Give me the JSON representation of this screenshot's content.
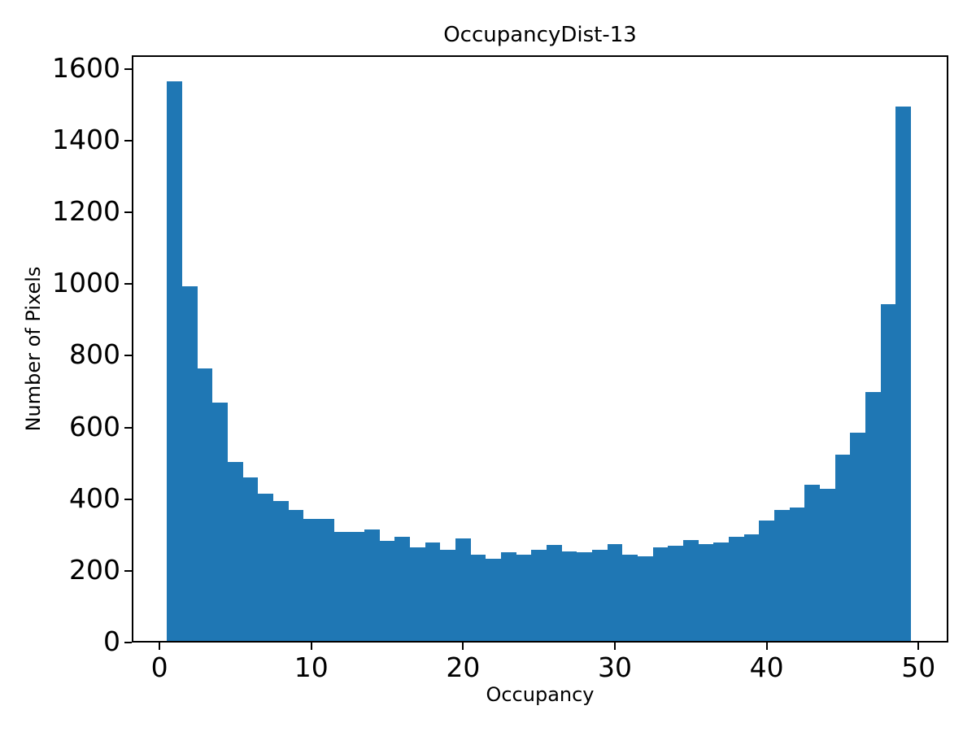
{
  "figure": {
    "background": "#ffffff",
    "bar_color": "#1f77b4",
    "spine_color": "#000000",
    "text_color": "#000000"
  },
  "chart_data": {
    "type": "bar",
    "subtype": "histogram",
    "title": "OccupancyDist-13",
    "xlabel": "Occupancy",
    "ylabel": "Number of Pixels",
    "bin_start": 0.5,
    "bin_width": 1,
    "bin_centers": [
      1,
      2,
      3,
      4,
      5,
      6,
      7,
      8,
      9,
      10,
      11,
      12,
      13,
      14,
      15,
      16,
      17,
      18,
      19,
      20,
      21,
      22,
      23,
      24,
      25,
      26,
      27,
      28,
      29,
      30,
      31,
      32,
      33,
      34,
      35,
      36,
      37,
      38,
      39,
      40,
      41,
      42,
      43,
      44,
      45,
      46,
      47,
      48,
      49
    ],
    "values": [
      1560,
      990,
      760,
      665,
      500,
      455,
      410,
      390,
      365,
      340,
      340,
      305,
      305,
      310,
      280,
      290,
      260,
      275,
      255,
      285,
      240,
      230,
      248,
      240,
      255,
      267,
      250,
      248,
      254,
      270,
      240,
      236,
      261,
      266,
      281,
      271,
      275,
      291,
      297,
      335,
      365,
      371,
      436,
      425,
      520,
      580,
      695,
      940,
      1490
    ],
    "xlim": [
      -1.83,
      51.97
    ],
    "ylim": [
      0,
      1638
    ],
    "xticks": [
      0,
      10,
      20,
      30,
      40,
      50
    ],
    "yticks": [
      0,
      200,
      400,
      600,
      800,
      1000,
      1200,
      1400,
      1600
    ],
    "grid": false,
    "legend": null
  }
}
